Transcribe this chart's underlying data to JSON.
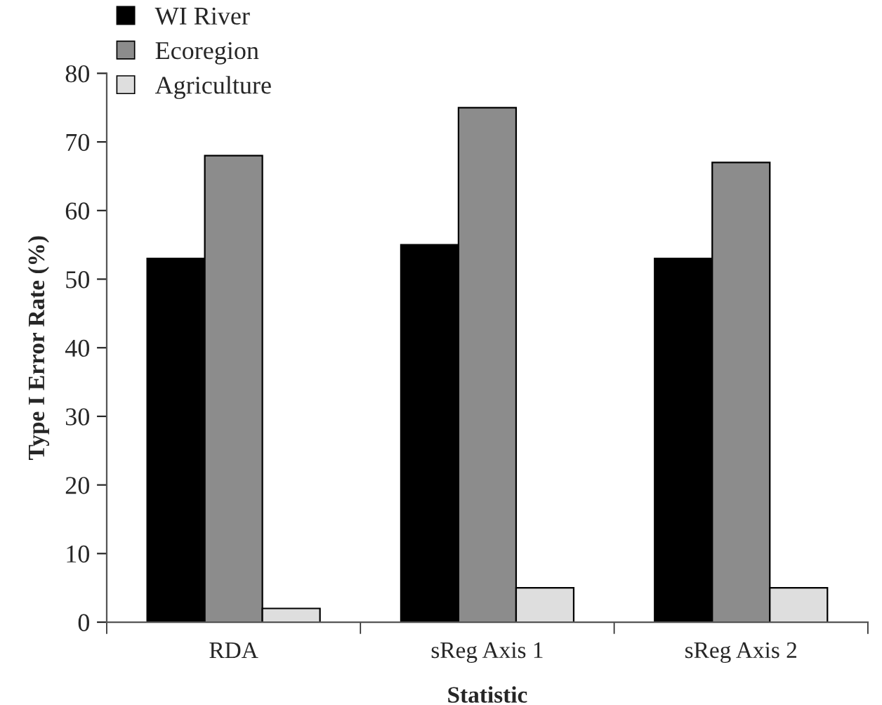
{
  "chart_data": {
    "type": "bar",
    "xlabel": "Statistic",
    "ylabel": "Type I Error Rate (%)",
    "categories": [
      "RDA",
      "sReg Axis 1",
      "sReg Axis 2"
    ],
    "series": [
      {
        "name": "WI River",
        "color": "#000000",
        "values": [
          53,
          55,
          53
        ]
      },
      {
        "name": "Ecoregion",
        "color": "#8c8c8c",
        "values": [
          68,
          75,
          67
        ]
      },
      {
        "name": "Agriculture",
        "color": "#dedede",
        "values": [
          2,
          5,
          5
        ]
      }
    ],
    "ylim": [
      0,
      80
    ],
    "yticks": [
      0,
      10,
      20,
      30,
      40,
      50,
      60,
      70,
      80
    ],
    "grid": false,
    "legend": "top left"
  }
}
